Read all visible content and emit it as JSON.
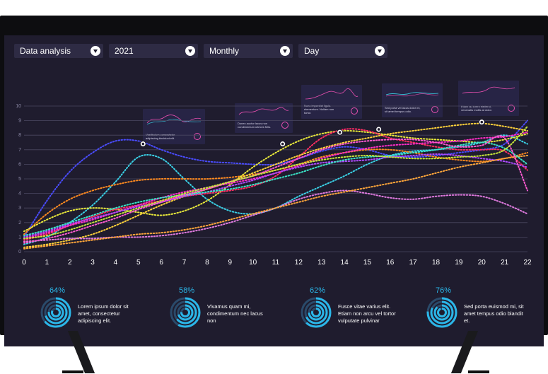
{
  "toolbar": {
    "dropdowns": [
      {
        "label": "Data analysis"
      },
      {
        "label": "2021"
      },
      {
        "label": "Monthly"
      },
      {
        "label": "Day"
      }
    ]
  },
  "mini_cards": [
    {
      "text": "Vestibulum consectetur adipiscing tincidunt elit."
    },
    {
      "text": "Donec auctor lacus non condimentum ultrices felis."
    },
    {
      "text": "Nunc imperdiet ligula elementum. Nullam non tortor."
    },
    {
      "text": "Sed porta vel lacus dolor mi, sit amet tempus odio."
    },
    {
      "text": "Etiam ac lorem eleifend, venenatis mollis at dolor."
    }
  ],
  "stats": [
    {
      "percent": "64%",
      "value": 0.64,
      "text": "Lorem ipsum dolor sit amet, consectetur adipiscing elit."
    },
    {
      "percent": "58%",
      "value": 0.58,
      "text": "Vivamus quam mi, condimentum nec lacus non"
    },
    {
      "percent": "62%",
      "value": 0.62,
      "text": "Fusce vitae varius elit. Etiam non arcu vel tortor vulputate pulvinar"
    },
    {
      "percent": "76%",
      "value": 0.76,
      "text": "Sed porta euismod mi, sit amet tempus odio blandit et."
    }
  ],
  "colors": {
    "background": "#1f1c2e",
    "accent": "#2bb6e8",
    "gridline": "#4a4760"
  },
  "chart_data": {
    "type": "line",
    "title": "",
    "xlabel": "",
    "ylabel": "",
    "x": [
      0,
      1,
      2,
      3,
      4,
      5,
      6,
      7,
      8,
      9,
      10,
      11,
      12,
      13,
      14,
      15,
      16,
      17,
      18,
      19,
      20,
      21,
      22
    ],
    "xlim": [
      0,
      22
    ],
    "ylim": [
      0,
      10
    ],
    "yticks": [
      0,
      1,
      2,
      3,
      4,
      5,
      6,
      7,
      8,
      9,
      10
    ],
    "grid": true,
    "series": [
      {
        "color": "#4a4cff",
        "values": [
          1.0,
          3.5,
          5.5,
          6.8,
          7.6,
          7.6,
          7.0,
          6.5,
          6.2,
          6.1,
          6.0,
          6.0,
          6.4,
          6.9,
          7.2,
          7.0,
          6.6,
          6.5,
          6.6,
          6.8,
          7.0,
          7.4,
          9.0
        ]
      },
      {
        "color": "#3ad1e6",
        "values": [
          0.5,
          1.0,
          2.0,
          3.2,
          4.8,
          6.5,
          6.4,
          5.0,
          3.6,
          2.8,
          2.6,
          3.0,
          3.8,
          4.5,
          5.2,
          6.0,
          6.6,
          6.9,
          7.0,
          7.2,
          7.5,
          8.0,
          7.4
        ]
      },
      {
        "color": "#ff8a1f",
        "values": [
          1.2,
          2.6,
          3.6,
          4.2,
          4.6,
          4.9,
          5.0,
          5.0,
          5.0,
          5.1,
          5.3,
          5.6,
          6.0,
          6.5,
          6.8,
          7.0,
          7.0,
          6.8,
          6.5,
          6.3,
          6.2,
          6.4,
          6.8
        ]
      },
      {
        "color": "#e8e83a",
        "values": [
          1.4,
          2.2,
          2.8,
          3.0,
          2.9,
          2.7,
          2.5,
          2.8,
          3.5,
          4.6,
          5.8,
          6.8,
          7.6,
          8.1,
          8.3,
          8.2,
          8.0,
          7.8,
          7.7,
          7.6,
          7.5,
          7.7,
          8.1
        ]
      },
      {
        "color": "#ff2e63",
        "values": [
          0.8,
          1.2,
          1.8,
          2.4,
          2.9,
          3.2,
          3.5,
          3.8,
          4.0,
          4.2,
          4.5,
          5.2,
          6.5,
          7.8,
          8.4,
          8.3,
          7.8,
          7.5,
          7.2,
          7.0,
          7.0,
          6.9,
          5.6
        ]
      },
      {
        "color": "#ff2ec8",
        "values": [
          0.9,
          1.3,
          1.8,
          2.2,
          2.7,
          3.2,
          3.7,
          4.1,
          4.4,
          4.7,
          5.0,
          5.4,
          5.9,
          6.4,
          6.8,
          7.1,
          7.3,
          7.4,
          7.5,
          7.6,
          7.8,
          7.9,
          8.2
        ]
      },
      {
        "color": "#ffd23a",
        "values": [
          0.3,
          0.5,
          0.8,
          1.2,
          1.8,
          2.5,
          3.2,
          3.8,
          4.3,
          4.8,
          5.4,
          6.0,
          6.6,
          7.1,
          7.5,
          7.8,
          8.1,
          8.3,
          8.5,
          8.7,
          8.8,
          8.6,
          8.3
        ]
      },
      {
        "color": "#b04aff",
        "values": [
          1.0,
          1.4,
          1.9,
          2.3,
          2.7,
          3.1,
          3.4,
          3.8,
          4.1,
          4.5,
          4.9,
          5.4,
          5.8,
          6.1,
          6.2,
          6.3,
          6.5,
          6.6,
          6.7,
          6.6,
          6.4,
          6.2,
          5.8
        ]
      },
      {
        "color": "#e07adf",
        "values": [
          0.7,
          0.8,
          0.9,
          0.9,
          1.0,
          1.0,
          1.1,
          1.3,
          1.6,
          2.0,
          2.5,
          3.0,
          3.6,
          4.0,
          4.2,
          4.0,
          3.7,
          3.6,
          3.8,
          3.9,
          3.8,
          3.3,
          2.6
        ]
      },
      {
        "color": "#ffa63a",
        "values": [
          0.2,
          0.4,
          0.6,
          0.8,
          1.0,
          1.2,
          1.3,
          1.5,
          1.8,
          2.2,
          2.6,
          3.0,
          3.4,
          3.8,
          4.1,
          4.4,
          4.7,
          5.0,
          5.4,
          5.8,
          6.1,
          6.4,
          6.6
        ]
      },
      {
        "color": "#3ae6c8",
        "values": [
          1.1,
          1.5,
          2.0,
          2.5,
          3.0,
          3.4,
          3.7,
          3.9,
          4.1,
          4.3,
          4.6,
          5.0,
          5.4,
          5.9,
          6.3,
          6.5,
          6.6,
          6.8,
          7.0,
          7.3,
          7.5,
          7.1,
          6.0
        ]
      },
      {
        "color": "#ff5ad1",
        "values": [
          0.6,
          0.9,
          1.3,
          1.8,
          2.3,
          2.9,
          3.4,
          3.9,
          4.3,
          4.8,
          5.2,
          5.8,
          6.4,
          7.0,
          7.4,
          7.6,
          7.7,
          7.7,
          7.5,
          7.2,
          7.3,
          7.8,
          4.2
        ]
      },
      {
        "color": "#c8e83a",
        "values": [
          0.9,
          1.1,
          1.5,
          2.0,
          2.5,
          3.0,
          3.5,
          4.0,
          4.4,
          4.8,
          5.2,
          5.6,
          6.0,
          6.3,
          6.5,
          6.6,
          6.5,
          6.4,
          6.4,
          6.5,
          6.6,
          7.0,
          8.6
        ]
      }
    ],
    "markers": [
      {
        "x": 5.2,
        "y": 7.4
      },
      {
        "x": 11.3,
        "y": 7.4
      },
      {
        "x": 13.8,
        "y": 8.2
      },
      {
        "x": 15.5,
        "y": 8.4
      },
      {
        "x": 20.0,
        "y": 8.9
      }
    ]
  }
}
